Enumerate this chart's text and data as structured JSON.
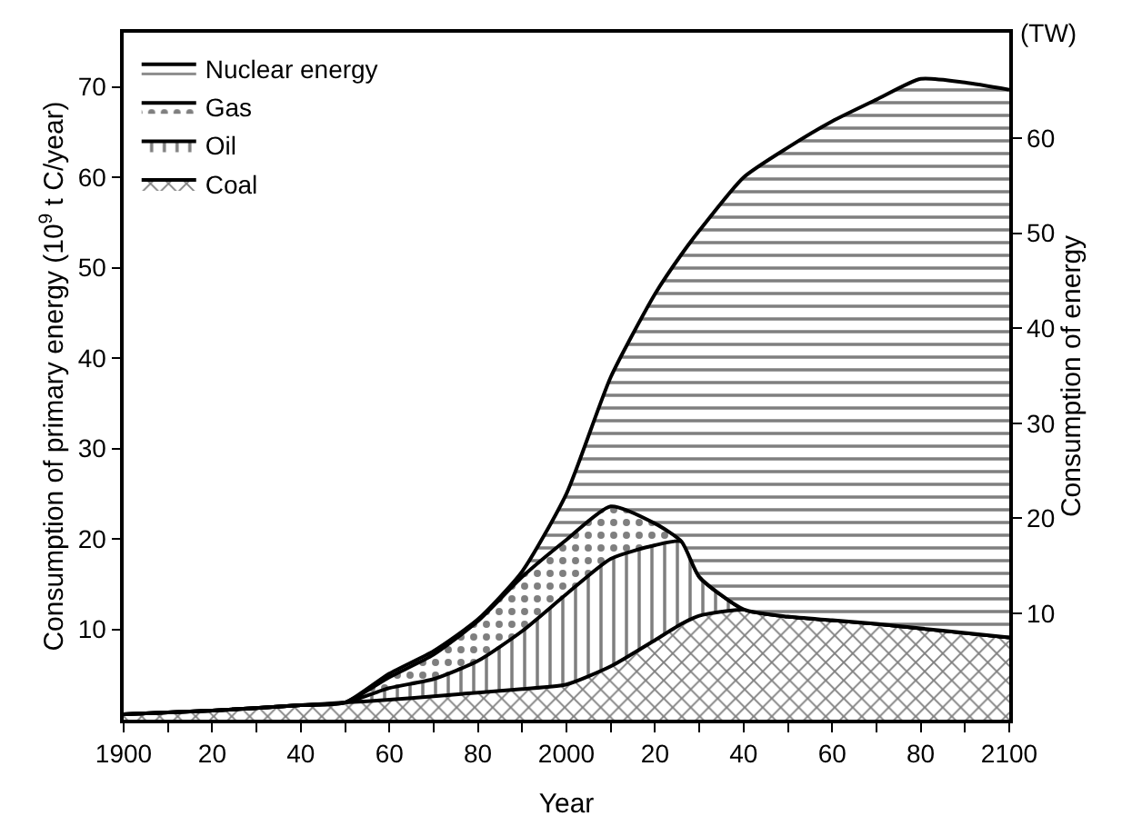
{
  "chart_data": {
    "type": "area",
    "stacked": true,
    "xlabel": "Year",
    "ylabel": "Consumption of primary energy (10$^{9}$ t C/year)",
    "y2label": "Consumption of energy",
    "annotations": [
      "(TW)"
    ],
    "x": [
      1900,
      1920,
      1940,
      1950,
      1960,
      1970,
      1980,
      1990,
      2000,
      2010,
      2020,
      2026,
      2030,
      2040,
      2050,
      2060,
      2070,
      2080,
      2090,
      2100
    ],
    "series": [
      {
        "name": "Coal",
        "color": "#000000",
        "values": [
          0.6,
          1.0,
          1.6,
          1.9,
          2.2,
          2.6,
          3.0,
          3.4,
          3.9,
          5.9,
          8.8,
          10.6,
          11.5,
          12.2,
          11.4,
          11.0,
          10.6,
          10.1,
          9.6,
          9.1
        ]
      },
      {
        "name": "Oil",
        "color": "#000000",
        "values": [
          0,
          0,
          0,
          0,
          1.3,
          1.9,
          3.5,
          6.4,
          10.0,
          11.9,
          10.5,
          9.1,
          4.3,
          0,
          0,
          0,
          0,
          0,
          0,
          0
        ]
      },
      {
        "name": "Gas",
        "color": "#000000",
        "values": [
          0,
          0,
          0,
          0,
          1.2,
          2.7,
          4.4,
          6.0,
          6.0,
          5.8,
          2.4,
          0,
          0,
          0,
          0,
          0,
          0,
          0,
          0,
          0
        ]
      },
      {
        "name": "Nuclear energy",
        "color": "#000000",
        "values": [
          0,
          0,
          0,
          0,
          0.4,
          0.4,
          0.2,
          0.6,
          5.1,
          14.3,
          25.4,
          31.8,
          38.3,
          47.8,
          51.9,
          55.2,
          58.0,
          60.8,
          60.9,
          60.6
        ]
      }
    ],
    "xlim": [
      1900,
      2100
    ],
    "xticks": [
      {
        "value": 1900,
        "label": "1900"
      },
      {
        "value": 1910,
        "label": null
      },
      {
        "value": 1920,
        "label": "20"
      },
      {
        "value": 1930,
        "label": null
      },
      {
        "value": 1940,
        "label": "40"
      },
      {
        "value": 1950,
        "label": null
      },
      {
        "value": 1960,
        "label": "60"
      },
      {
        "value": 1970,
        "label": null
      },
      {
        "value": 1980,
        "label": "80"
      },
      {
        "value": 1990,
        "label": null
      },
      {
        "value": 2000,
        "label": "2000"
      },
      {
        "value": 2010,
        "label": null
      },
      {
        "value": 2020,
        "label": "20"
      },
      {
        "value": 2030,
        "label": null
      },
      {
        "value": 2040,
        "label": "40"
      },
      {
        "value": 2050,
        "label": null
      },
      {
        "value": 2060,
        "label": "60"
      },
      {
        "value": 2070,
        "label": null
      },
      {
        "value": 2080,
        "label": "80"
      },
      {
        "value": 2090,
        "label": null
      },
      {
        "value": 2100,
        "label": "2100"
      }
    ],
    "ylim": [
      0,
      76
    ],
    "yticks": [
      10,
      20,
      30,
      40,
      50,
      60,
      70
    ],
    "y2lim": [
      -1.2,
      71.1
    ],
    "y2ticks": [
      10,
      20,
      30,
      40,
      50,
      60
    ],
    "legend": "top left"
  }
}
